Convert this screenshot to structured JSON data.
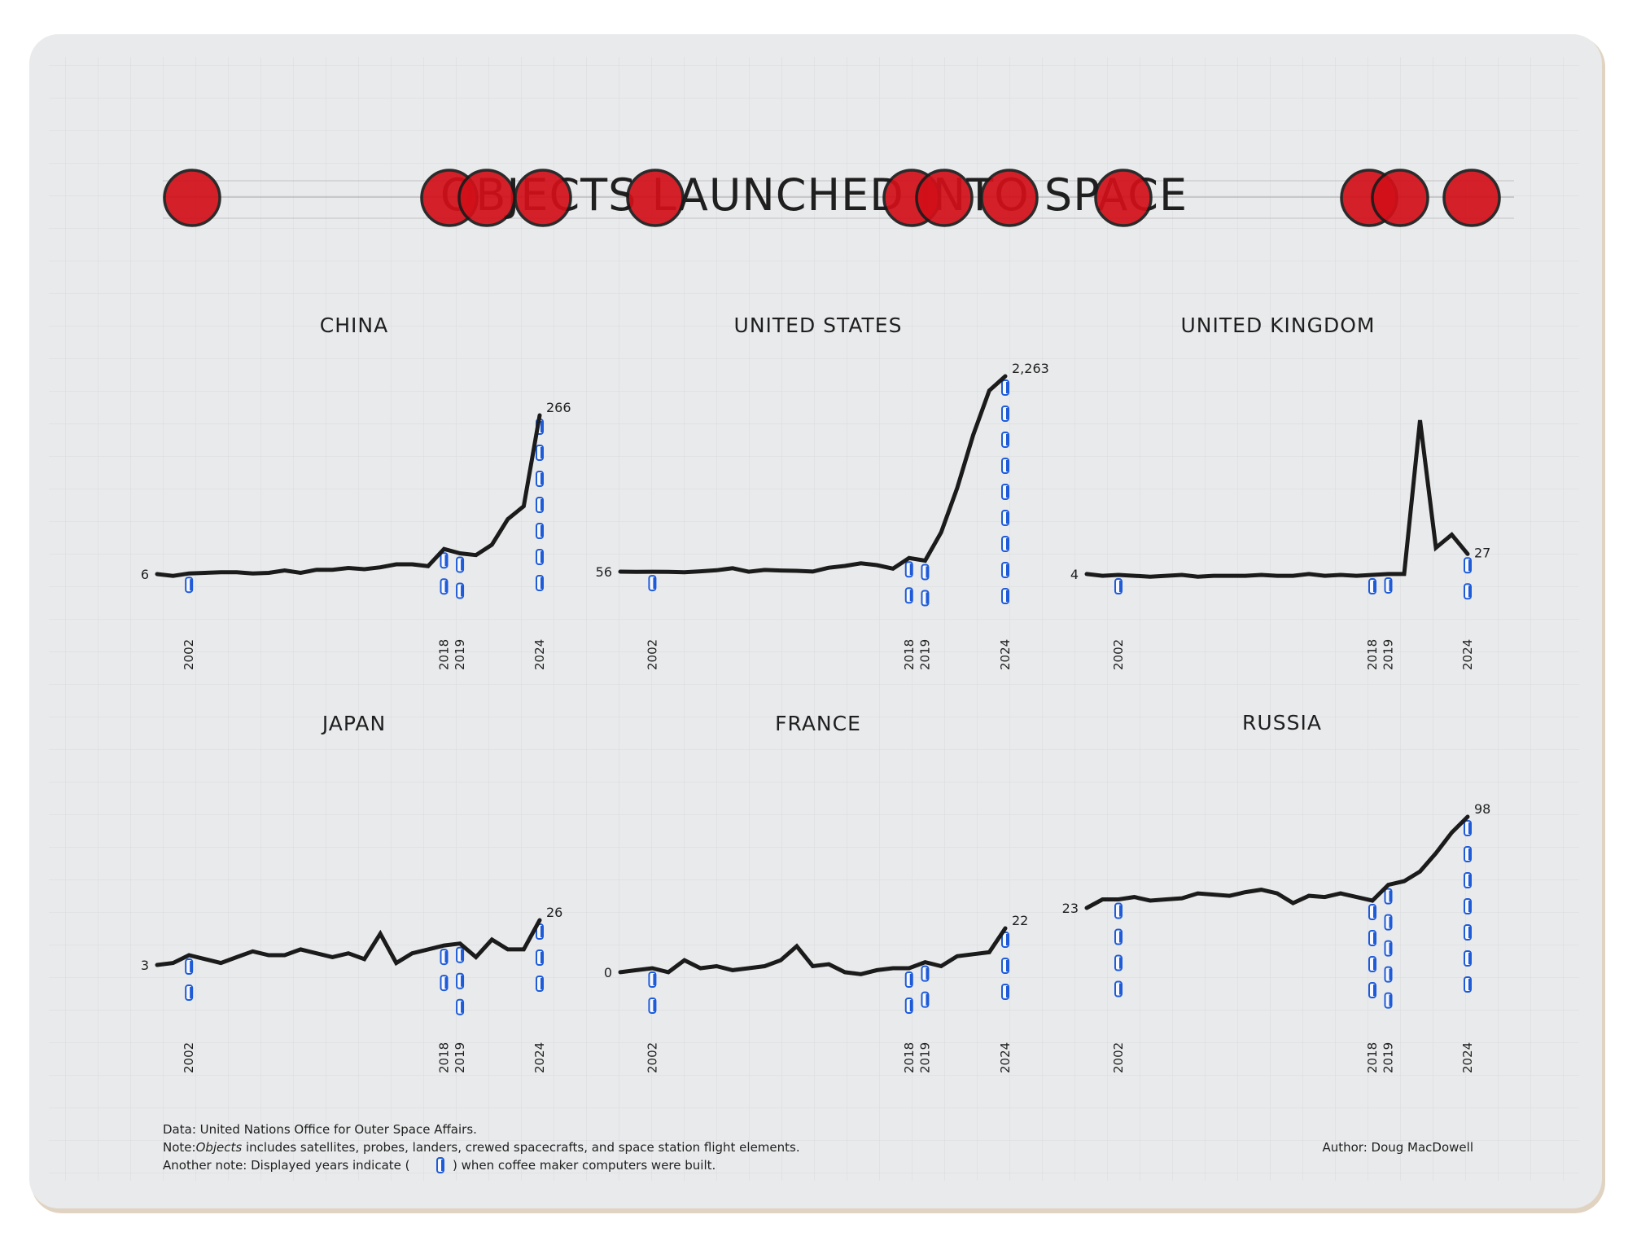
{
  "title": "OBJECTS LAUNCHED INTO SPACE",
  "colors": {
    "board": "#e9eaeb",
    "line": "#1b1b1b",
    "dot": "#d20f19",
    "pencil": "#a6a7a9",
    "blue": "#1e5bd8"
  },
  "icons": {
    "marker": "coffee-maker-computer-icon"
  },
  "marker_years": [
    2002,
    2018,
    2019,
    2024
  ],
  "chart_data": [
    {
      "type": "line",
      "title": "CHINA",
      "x": [
        2000,
        2001,
        2002,
        2003,
        2004,
        2005,
        2006,
        2007,
        2008,
        2009,
        2010,
        2011,
        2012,
        2013,
        2014,
        2015,
        2016,
        2017,
        2018,
        2019,
        2020,
        2021,
        2022,
        2023,
        2024
      ],
      "y": [
        6,
        3,
        7,
        8,
        9,
        9,
        7,
        8,
        12,
        8,
        13,
        13,
        16,
        14,
        17,
        22,
        22,
        19,
        47,
        40,
        37,
        54,
        96,
        117,
        266
      ],
      "start_label": "6",
      "end_label": "266",
      "x_tick_labels": [
        "2002",
        "2018",
        "2019",
        "2024"
      ]
    },
    {
      "type": "line",
      "title": "UNITED STATES",
      "x": [
        2000,
        2001,
        2002,
        2003,
        2004,
        2005,
        2006,
        2007,
        2008,
        2009,
        2010,
        2011,
        2012,
        2013,
        2014,
        2015,
        2016,
        2017,
        2018,
        2019,
        2020,
        2021,
        2022,
        2023,
        2024
      ],
      "y": [
        56,
        54,
        55,
        53,
        50,
        60,
        72,
        95,
        55,
        75,
        69,
        65,
        57,
        100,
        120,
        150,
        130,
        90,
        210,
        180,
        500,
        1000,
        1600,
        2100,
        2263
      ],
      "start_label": "56",
      "end_label": "2,263",
      "x_tick_labels": [
        "2002",
        "2018",
        "2019",
        "2024"
      ]
    },
    {
      "type": "line",
      "title": "UNITED KINGDOM",
      "x": [
        2000,
        2001,
        2002,
        2003,
        2004,
        2005,
        2006,
        2007,
        2008,
        2009,
        2010,
        2011,
        2012,
        2013,
        2014,
        2015,
        2016,
        2017,
        2018,
        2019,
        2020,
        2021,
        2022,
        2023,
        2024
      ],
      "y": [
        4,
        2,
        3,
        2,
        1,
        2,
        3,
        1,
        2,
        2,
        2,
        3,
        2,
        2,
        4,
        2,
        3,
        2,
        3,
        4,
        4,
        180,
        34,
        49,
        27
      ],
      "start_label": "4",
      "end_label": "27",
      "x_tick_labels": [
        "2002",
        "2018",
        "2019",
        "2024"
      ]
    },
    {
      "type": "line",
      "title": "JAPAN",
      "x": [
        2000,
        2001,
        2002,
        2003,
        2004,
        2005,
        2006,
        2007,
        2008,
        2009,
        2010,
        2011,
        2012,
        2013,
        2014,
        2015,
        2016,
        2017,
        2018,
        2019,
        2020,
        2021,
        2022,
        2023,
        2024
      ],
      "y": [
        3,
        4,
        8,
        6,
        4,
        7,
        10,
        8,
        8,
        11,
        9,
        7,
        9,
        6,
        19,
        4,
        9,
        11,
        13,
        14,
        7,
        16,
        11,
        11,
        26
      ],
      "start_label": "3",
      "end_label": "26",
      "x_tick_labels": [
        "2002",
        "2018",
        "2019",
        "2024"
      ]
    },
    {
      "type": "line",
      "title": "FRANCE",
      "x": [
        2000,
        2001,
        2002,
        2003,
        2004,
        2005,
        2006,
        2007,
        2008,
        2009,
        2010,
        2011,
        2012,
        2013,
        2014,
        2015,
        2016,
        2017,
        2018,
        2019,
        2020,
        2021,
        2022,
        2023,
        2024
      ],
      "y": [
        0,
        1,
        2,
        0,
        6,
        2,
        3,
        1,
        2,
        3,
        6,
        13,
        3,
        4,
        0,
        -1,
        1,
        2,
        2,
        5,
        3,
        8,
        9,
        10,
        22
      ],
      "start_label": "0",
      "end_label": "22",
      "x_tick_labels": [
        "2002",
        "2018",
        "2019",
        "2024"
      ]
    },
    {
      "type": "line",
      "title": "RUSSIA",
      "x": [
        2000,
        2001,
        2002,
        2003,
        2004,
        2005,
        2006,
        2007,
        2008,
        2009,
        2010,
        2011,
        2012,
        2013,
        2014,
        2015,
        2016,
        2017,
        2018,
        2019,
        2020,
        2021,
        2022,
        2023,
        2024
      ],
      "y": [
        23,
        30,
        30,
        32,
        29,
        30,
        31,
        35,
        34,
        33,
        36,
        38,
        35,
        27,
        33,
        32,
        35,
        32,
        29,
        42,
        45,
        53,
        68,
        85,
        98
      ],
      "start_label": "23",
      "end_label": "98",
      "x_tick_labels": [
        "2002",
        "2018",
        "2019",
        "2024"
      ]
    }
  ],
  "footer": {
    "data_source": "Data: United Nations Office for Outer Space Affairs.",
    "note_prefix": "Note:",
    "note_term": "Objects",
    "note_rest": " includes satellites, probes, landers, crewed spacecrafts, and space station flight elements.",
    "another_note_before": "Another note: Displayed years indicate (",
    "another_note_after": ") when coffee maker computers were built.",
    "author": "Author: Doug MacDowell"
  }
}
